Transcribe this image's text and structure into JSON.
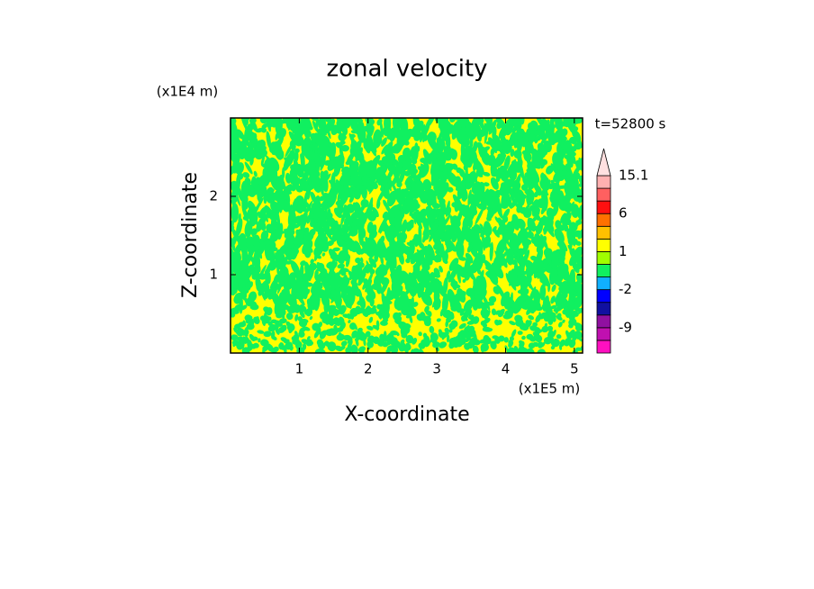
{
  "chart_data": {
    "type": "contour",
    "title": "zonal velocity",
    "x_label": "X-coordinate",
    "y_label": "Z-coordinate",
    "x_unit": "(x1E5 m)",
    "y_unit": "(x1E4 m)",
    "time_label": "t=52800 s",
    "xlim": [
      0,
      5.12
    ],
    "xticks": [
      1,
      2,
      3,
      4,
      5
    ],
    "ylim": [
      0,
      3
    ],
    "yticks": [
      1,
      2
    ],
    "field_colors": [
      "#ffff00",
      "#10f060"
    ],
    "colorbar": {
      "bounds": [
        -12,
        -9,
        -6,
        -3,
        -2,
        -1,
        0,
        1,
        2,
        3,
        6,
        9,
        12,
        15.1
      ],
      "colors": [
        "#ff10c0",
        "#c010b0",
        "#9010a0",
        "#1010a0",
        "#0000ff",
        "#10b0ff",
        "#10f060",
        "#a0ff00",
        "#ffff00",
        "#ffc000",
        "#ff7000",
        "#ff1010",
        "#ff6060",
        "#ffb0b0",
        "#ffe0e0"
      ],
      "ticks": [
        -9,
        -2,
        1,
        6,
        15.1
      ]
    }
  }
}
